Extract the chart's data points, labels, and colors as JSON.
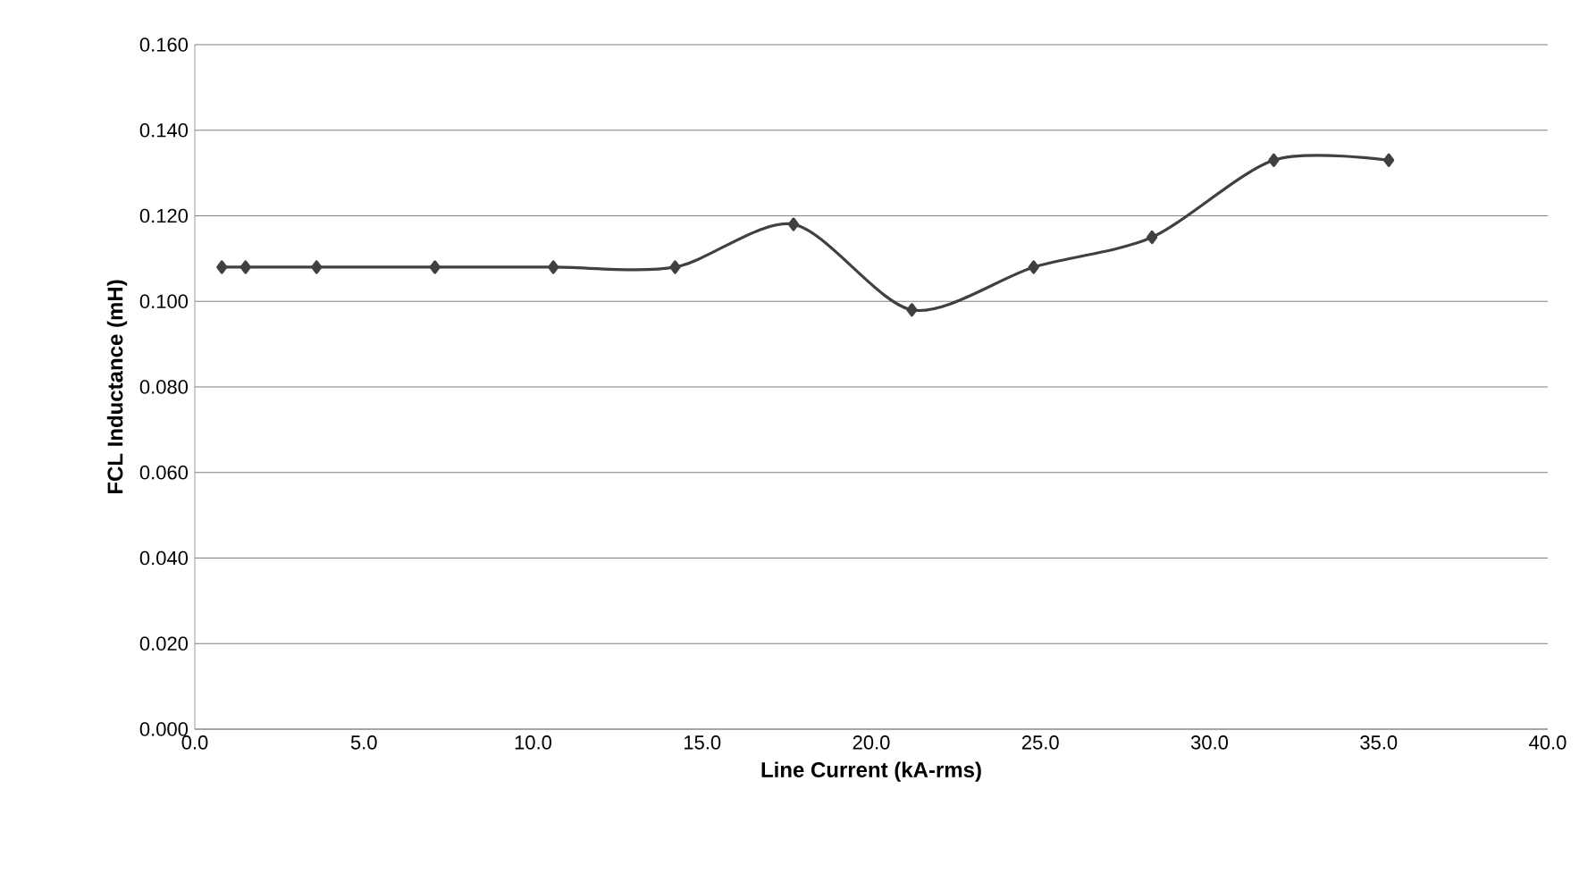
{
  "chart_data": {
    "type": "line",
    "xlabel": "Line Current (kA-rms)",
    "ylabel": "FCL Inductance (mH)",
    "x": [
      0.8,
      1.5,
      3.6,
      7.1,
      10.6,
      14.2,
      17.7,
      21.2,
      24.8,
      28.3,
      31.9,
      35.3
    ],
    "series": [
      {
        "color": "#404040",
        "values": [
          0.108,
          0.108,
          0.108,
          0.108,
          0.108,
          0.108,
          0.118,
          0.098,
          0.108,
          0.115,
          0.133,
          0.133
        ]
      }
    ],
    "xlim": [
      0,
      40
    ],
    "ylim": [
      0,
      0.16
    ],
    "xticks": [
      {
        "value": 0,
        "label": "0.0"
      },
      {
        "value": 5,
        "label": "5.0"
      },
      {
        "value": 10,
        "label": "10.0"
      },
      {
        "value": 15,
        "label": "15.0"
      },
      {
        "value": 20,
        "label": "20.0"
      },
      {
        "value": 25,
        "label": "25.0"
      },
      {
        "value": 30,
        "label": "30.0"
      },
      {
        "value": 35,
        "label": "35.0"
      },
      {
        "value": 40,
        "label": "40.0"
      }
    ],
    "yticks": [
      {
        "value": 0,
        "label": "0.000"
      },
      {
        "value": 0.02,
        "label": "0.020"
      },
      {
        "value": 0.04,
        "label": "0.040"
      },
      {
        "value": 0.06,
        "label": "0.060"
      },
      {
        "value": 0.08,
        "label": "0.080"
      },
      {
        "value": 0.1,
        "label": "0.100"
      },
      {
        "value": 0.12,
        "label": "0.120"
      },
      {
        "value": 0.14,
        "label": "0.140"
      },
      {
        "value": 0.16,
        "label": "0.160"
      }
    ],
    "grid": "y",
    "marker": "diamond",
    "line_style": "solid"
  }
}
